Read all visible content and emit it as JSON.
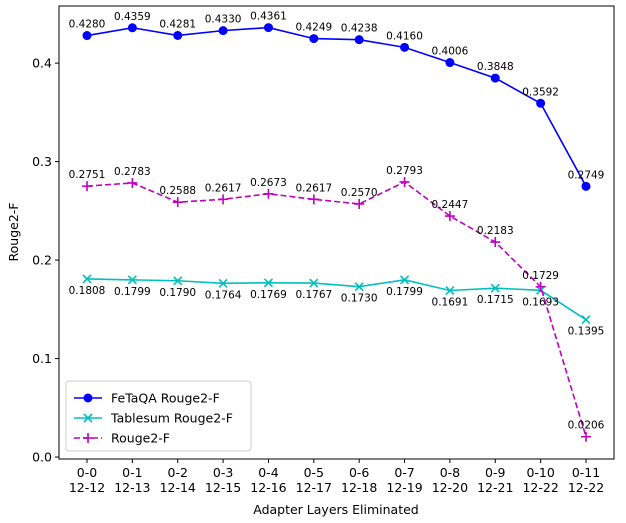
{
  "chart_data": {
    "type": "line",
    "xlabel": "Adapter Layers Eliminated",
    "ylabel": "Rouge2-F",
    "ylim": [
      -0.002,
      0.458
    ],
    "yticks": [
      "0.0",
      "0.1",
      "0.2",
      "0.3",
      "0.4"
    ],
    "categories": [
      [
        "0-0",
        "12-12"
      ],
      [
        "0-1",
        "12-13"
      ],
      [
        "0-2",
        "12-14"
      ],
      [
        "0-3",
        "12-15"
      ],
      [
        "0-4",
        "12-16"
      ],
      [
        "0-5",
        "12-17"
      ],
      [
        "0-6",
        "12-18"
      ],
      [
        "0-7",
        "12-19"
      ],
      [
        "0-8",
        "12-20"
      ],
      [
        "0-9",
        "12-21"
      ],
      [
        "0-10",
        "12-22"
      ],
      [
        "0-11",
        "12-22"
      ]
    ],
    "legend_position": "lower-left",
    "grid": false,
    "series": [
      {
        "name": "FeTaQA Rouge2-F",
        "color": "#0000ff",
        "marker": "circle",
        "linestyle": "solid",
        "label_position": "above",
        "values": [
          0.428,
          0.4359,
          0.4281,
          0.433,
          0.4361,
          0.4249,
          0.4238,
          0.416,
          0.4006,
          0.3848,
          0.3592,
          0.2749
        ],
        "labels": [
          "0.4280",
          "0.4359",
          "0.4281",
          "0.4330",
          "0.4361",
          "0.4249",
          "0.4238",
          "0.4160",
          "0.4006",
          "0.3848",
          "0.3592",
          "0.2749"
        ]
      },
      {
        "name": "Tablesum Rouge2-F",
        "color": "#00bfbf",
        "marker": "x",
        "linestyle": "solid",
        "label_position": "below",
        "values": [
          0.1808,
          0.1799,
          0.179,
          0.1764,
          0.1769,
          0.1767,
          0.173,
          0.1799,
          0.1691,
          0.1715,
          0.1693,
          0.1395
        ],
        "labels": [
          "0.1808",
          "0.1799",
          "0.1790",
          "0.1764",
          "0.1769",
          "0.1767",
          "0.1730",
          "0.1799",
          "0.1691",
          "0.1715",
          "0.1693",
          "0.1395"
        ]
      },
      {
        "name": "Rouge2-F",
        "color": "#bf00bf",
        "marker": "plus",
        "linestyle": "dashed",
        "label_position": "above",
        "values": [
          0.2751,
          0.2783,
          0.2588,
          0.2617,
          0.2673,
          0.2617,
          0.257,
          0.2793,
          0.2447,
          0.2183,
          0.1729,
          0.0206
        ],
        "labels": [
          "0.2751",
          "0.2783",
          "0.2588",
          "0.2617",
          "0.2673",
          "0.2617",
          "0.2570",
          "0.2793",
          "0.2447",
          "0.2183",
          "0.1729",
          "0.0206"
        ]
      }
    ]
  }
}
